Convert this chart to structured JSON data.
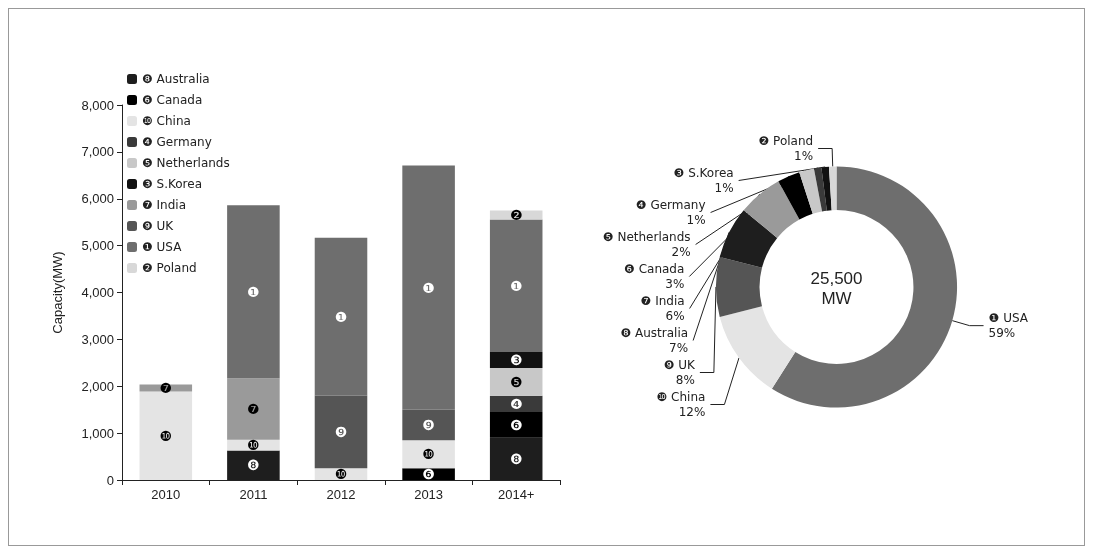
{
  "chart_data": [
    {
      "type": "bar",
      "stacked": true,
      "ylabel": "Capacity(MW)",
      "categories": [
        "2010",
        "2011",
        "2012",
        "2013",
        "2014+"
      ],
      "ylim": [
        0,
        8000
      ],
      "yticks": [
        {
          "value": 0,
          "label": "0"
        },
        {
          "value": 1000,
          "label": "1,000"
        },
        {
          "value": 2000,
          "label": "2,000"
        },
        {
          "value": 3000,
          "label": "3,000"
        },
        {
          "value": 4000,
          "label": "4,000"
        },
        {
          "value": 5000,
          "label": "5,000"
        },
        {
          "value": 6000,
          "label": "6,000"
        },
        {
          "value": 7000,
          "label": "7,000"
        },
        {
          "value": 8000,
          "label": "8,000"
        }
      ],
      "legend": "top left",
      "grid": false,
      "series": [
        {
          "name": "❽ Australia",
          "color": "#1e1e1e",
          "values": [
            null,
            630,
            null,
            null,
            900
          ],
          "value_labels": [
            null,
            "❽",
            null,
            null,
            "❽"
          ]
        },
        {
          "name": "❻ Canada",
          "color": "#000000",
          "values": [
            null,
            null,
            null,
            250,
            550
          ],
          "value_labels": [
            null,
            null,
            null,
            "❻",
            "❻"
          ]
        },
        {
          "name": "❿ China",
          "color": "#e4e4e4",
          "values": [
            1890,
            230,
            250,
            600,
            null
          ],
          "value_labels": [
            "❿",
            "❿",
            "❿",
            "❿",
            null
          ]
        },
        {
          "name": "❹ Germany",
          "color": "#3a3a3a",
          "values": [
            null,
            null,
            null,
            null,
            350
          ],
          "value_labels": [
            null,
            null,
            null,
            null,
            "❹"
          ]
        },
        {
          "name": "❺ Netherlands",
          "color": "#c8c8c8",
          "values": [
            null,
            null,
            null,
            null,
            590
          ],
          "value_labels": [
            null,
            null,
            null,
            null,
            "❺"
          ]
        },
        {
          "name": "❸ S.Korea",
          "color": "#111111",
          "values": [
            null,
            null,
            null,
            null,
            340
          ],
          "value_labels": [
            null,
            null,
            null,
            null,
            "❸"
          ]
        },
        {
          "name": "❼ India",
          "color": "#9a9a9a",
          "values": [
            150,
            1310,
            null,
            null,
            null
          ],
          "value_labels": [
            "❼",
            "❼",
            null,
            null,
            null
          ]
        },
        {
          "name": "❾ UK",
          "color": "#555555",
          "values": [
            null,
            null,
            1550,
            650,
            null
          ],
          "value_labels": [
            null,
            null,
            "❾",
            "❾",
            null
          ]
        },
        {
          "name": "❶ USA",
          "color": "#6e6e6e",
          "values": [
            null,
            3690,
            3370,
            5210,
            2830
          ],
          "value_labels": [
            null,
            "❶",
            "❶",
            "❶",
            "❶"
          ]
        },
        {
          "name": "❷ Poland",
          "color": "#d8d8d8",
          "values": [
            null,
            null,
            null,
            null,
            190
          ],
          "value_labels": [
            null,
            null,
            null,
            null,
            "❷"
          ]
        }
      ]
    },
    {
      "type": "donut",
      "categories": [
        "❶ USA",
        "❿ China",
        "❾ UK",
        "❽ Australia",
        "❼ India",
        "❻ Canada",
        "❺ Netherlands",
        "❹ Germany",
        "❸ S.Korea",
        "❷ Poland"
      ],
      "values": [
        59,
        12,
        8,
        7,
        6,
        3,
        2,
        1,
        1,
        1
      ],
      "value_labels": [
        "59%",
        "12%",
        "8%",
        "7%",
        "6%",
        "3%",
        "2%",
        "1%",
        "1%",
        "1%"
      ],
      "colors": [
        "#6e6e6e",
        "#e4e4e4",
        "#555555",
        "#1e1e1e",
        "#9a9a9a",
        "#000000",
        "#c8c8c8",
        "#3a3a3a",
        "#111111",
        "#d8d8d8"
      ],
      "annotations": [
        "25,500\nMW"
      ]
    }
  ]
}
